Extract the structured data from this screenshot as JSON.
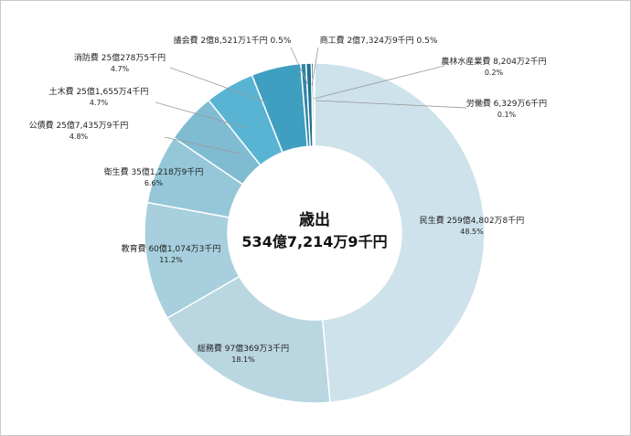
{
  "chart_data": {
    "type": "pie",
    "variant": "donut",
    "center_title": "歳出",
    "center_total": "534億7,214万9千円",
    "legend": "none (labels outside slices with leader lines)",
    "categories": [
      "民生費",
      "総務費",
      "教育費",
      "衛生費",
      "公債費",
      "土木費",
      "消防費",
      "議会費",
      "商工費",
      "農林水産業費",
      "労働費"
    ],
    "values": [
      48.5,
      18.1,
      11.2,
      6.6,
      4.8,
      4.7,
      4.7,
      0.5,
      0.5,
      0.2,
      0.1
    ],
    "slices": [
      {
        "name": "民生費",
        "amount": "259億4,802万8千円",
        "pct": "48.5%",
        "value": 48.5,
        "color": "#cde2ea"
      },
      {
        "name": "総務費",
        "amount": "97億369万3千円",
        "pct": "18.1%",
        "value": 18.1,
        "color": "#b9d6e1"
      },
      {
        "name": "教育費",
        "amount": "60億1,074万3千円",
        "pct": "11.2%",
        "value": 11.2,
        "color": "#a7cfdd"
      },
      {
        "name": "衛生費",
        "amount": "35億1,218万9千円",
        "pct": "6.6%",
        "value": 6.6,
        "color": "#95c7d9"
      },
      {
        "name": "公債費",
        "amount": "25億7,435万9千円",
        "pct": "4.8%",
        "value": 4.8,
        "color": "#7fbcd2"
      },
      {
        "name": "土木費",
        "amount": "25億1,655万4千円",
        "pct": "4.7%",
        "value": 4.7,
        "color": "#58b4d2"
      },
      {
        "name": "消防費",
        "amount": "25億278万5千円",
        "pct": "4.7%",
        "value": 4.7,
        "color": "#3f9fc0"
      },
      {
        "name": "議会費",
        "amount": "2億8,521万1千円",
        "pct": "0.5%",
        "value": 0.5,
        "color": "#2f86a6"
      },
      {
        "name": "商工費",
        "amount": "2億7,324万9千円",
        "pct": "0.5%",
        "value": 0.5,
        "color": "#20708f"
      },
      {
        "name": "農林水産業費",
        "amount": "8,204万2千円",
        "pct": "0.2%",
        "value": 0.2,
        "color": "#165d79"
      },
      {
        "name": "労働費",
        "amount": "6,329万6千円",
        "pct": "0.1%",
        "value": 0.1,
        "color": "#0f4c64"
      }
    ]
  }
}
